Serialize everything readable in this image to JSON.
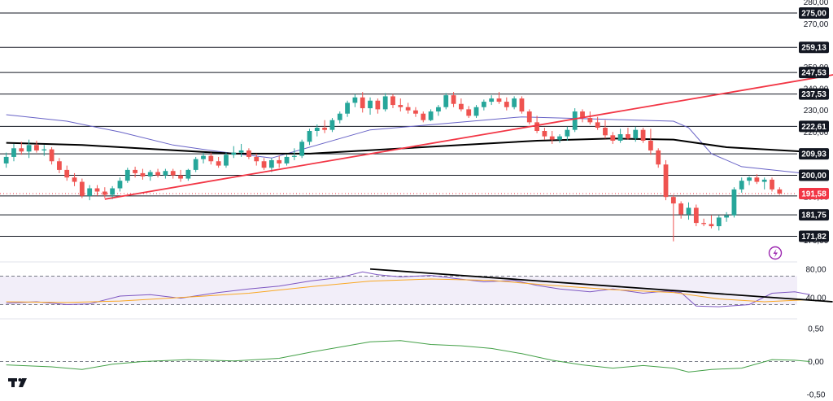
{
  "chart_data": [
    {
      "type": "candlestick",
      "title": "",
      "ylim": [
        160,
        281
      ],
      "y_ticks": [
        "280,00",
        "270,00",
        "250,00",
        "240,00",
        "230,00",
        "220,00",
        "190,00",
        "170,00"
      ],
      "grid": false,
      "up_color": "#26a69a",
      "down_color": "#ef5350",
      "candles": [
        [
          205.5,
          210.5,
          203.5,
          208.5
        ],
        [
          208.5,
          214.5,
          206.5,
          212.5
        ],
        [
          212.5,
          215.5,
          209.5,
          211.0
        ],
        [
          211.0,
          216.5,
          208.0,
          214.0
        ],
        [
          214.0,
          216.0,
          210.5,
          211.5
        ],
        [
          211.5,
          214.0,
          209.0,
          212.0
        ],
        [
          212.0,
          213.0,
          205.0,
          206.5
        ],
        [
          206.5,
          208.0,
          201.0,
          202.5
        ],
        [
          202.5,
          204.5,
          197.5,
          199.0
        ],
        [
          199.0,
          201.0,
          195.0,
          197.0
        ],
        [
          197.0,
          198.5,
          189.5,
          190.5
        ],
        [
          190.5,
          195.5,
          188.5,
          194.0
        ],
        [
          194.0,
          195.5,
          190.5,
          192.5
        ],
        [
          192.5,
          194.5,
          189.5,
          191.0
        ],
        [
          191.0,
          195.0,
          189.0,
          194.0
        ],
        [
          194.0,
          199.0,
          192.5,
          197.5
        ],
        [
          197.5,
          203.5,
          196.5,
          202.5
        ],
        [
          202.5,
          204.0,
          199.0,
          201.0
        ],
        [
          201.0,
          203.0,
          198.0,
          199.5
        ],
        [
          199.5,
          202.5,
          197.5,
          201.5
        ],
        [
          201.5,
          203.0,
          199.0,
          200.0
        ],
        [
          200.0,
          203.0,
          198.5,
          202.0
        ],
        [
          202.0,
          203.0,
          198.5,
          200.0
        ],
        [
          200.0,
          202.5,
          197.0,
          198.5
        ],
        [
          198.5,
          203.0,
          197.5,
          202.5
        ],
        [
          202.5,
          208.5,
          201.5,
          207.5
        ],
        [
          207.5,
          210.5,
          205.5,
          209.0
        ],
        [
          209.0,
          210.5,
          205.0,
          206.5
        ],
        [
          206.5,
          208.5,
          203.5,
          204.5
        ],
        [
          204.5,
          210.5,
          203.5,
          209.5
        ],
        [
          209.5,
          213.5,
          208.0,
          210.5
        ],
        [
          210.5,
          214.5,
          208.5,
          211.5
        ],
        [
          211.5,
          212.5,
          207.5,
          208.5
        ],
        [
          208.5,
          210.0,
          204.5,
          206.5
        ],
        [
          206.5,
          208.0,
          202.5,
          203.5
        ],
        [
          203.5,
          208.0,
          201.5,
          207.0
        ],
        [
          207.0,
          209.0,
          203.5,
          205.5
        ],
        [
          205.5,
          209.5,
          204.5,
          208.5
        ],
        [
          208.5,
          212.5,
          207.0,
          209.0
        ],
        [
          209.0,
          216.5,
          208.0,
          215.5
        ],
        [
          215.5,
          221.5,
          214.0,
          220.5
        ],
        [
          220.5,
          223.5,
          218.0,
          222.0
        ],
        [
          222.0,
          225.5,
          219.5,
          221.0
        ],
        [
          221.0,
          226.5,
          220.0,
          225.5
        ],
        [
          225.5,
          229.5,
          224.0,
          228.5
        ],
        [
          228.5,
          234.5,
          227.0,
          233.5
        ],
        [
          233.5,
          237.5,
          231.5,
          236.0
        ],
        [
          236.0,
          238.5,
          229.0,
          231.0
        ],
        [
          231.0,
          236.0,
          228.0,
          234.5
        ],
        [
          234.5,
          235.5,
          228.5,
          230.5
        ],
        [
          230.5,
          238.0,
          229.5,
          236.5
        ],
        [
          236.5,
          237.5,
          231.0,
          232.5
        ],
        [
          232.5,
          235.5,
          229.5,
          231.5
        ],
        [
          231.5,
          233.5,
          228.5,
          230.0
        ],
        [
          230.0,
          231.5,
          227.0,
          228.5
        ],
        [
          228.5,
          229.5,
          224.5,
          225.5
        ],
        [
          225.5,
          230.5,
          225.0,
          229.5
        ],
        [
          229.5,
          232.5,
          227.5,
          231.5
        ],
        [
          231.5,
          238.0,
          230.5,
          237.0
        ],
        [
          237.0,
          238.5,
          231.5,
          233.0
        ],
        [
          233.0,
          235.5,
          229.5,
          230.5
        ],
        [
          230.5,
          232.0,
          226.5,
          227.5
        ],
        [
          227.5,
          232.5,
          226.5,
          231.5
        ],
        [
          231.5,
          235.0,
          230.0,
          234.0
        ],
        [
          234.0,
          237.0,
          232.5,
          235.5
        ],
        [
          235.5,
          238.5,
          233.0,
          234.0
        ],
        [
          234.0,
          236.0,
          230.0,
          231.5
        ],
        [
          231.5,
          236.5,
          230.5,
          235.5
        ],
        [
          235.5,
          236.5,
          228.5,
          229.5
        ],
        [
          229.5,
          230.5,
          223.5,
          224.5
        ],
        [
          224.5,
          227.5,
          219.5,
          220.5
        ],
        [
          220.5,
          222.0,
          216.5,
          218.0
        ],
        [
          218.0,
          220.5,
          214.5,
          216.5
        ],
        [
          216.5,
          219.0,
          215.0,
          218.0
        ],
        [
          218.0,
          222.5,
          216.0,
          221.0
        ],
        [
          221.0,
          231.0,
          220.0,
          229.5
        ],
        [
          229.5,
          230.5,
          224.5,
          226.5
        ],
        [
          226.5,
          229.5,
          223.5,
          224.5
        ],
        [
          224.5,
          227.0,
          221.0,
          222.0
        ],
        [
          222.0,
          225.5,
          217.0,
          218.5
        ],
        [
          218.5,
          220.0,
          214.5,
          216.0
        ],
        [
          216.0,
          221.5,
          215.0,
          219.0
        ],
        [
          219.0,
          222.0,
          216.5,
          217.0
        ],
        [
          217.0,
          222.5,
          215.5,
          221.0
        ],
        [
          221.0,
          222.0,
          215.0,
          216.0
        ],
        [
          216.0,
          221.5,
          209.5,
          211.5
        ],
        [
          211.5,
          212.5,
          203.5,
          205.0
        ],
        [
          205.0,
          207.0,
          188.5,
          190.0
        ],
        [
          190.0,
          191.0,
          169.5,
          187.0
        ],
        [
          187.0,
          188.0,
          180.0,
          182.0
        ],
        [
          182.0,
          187.5,
          179.5,
          185.0
        ],
        [
          185.0,
          186.5,
          176.5,
          178.0
        ],
        [
          178.0,
          180.0,
          176.5,
          177.5
        ],
        [
          177.5,
          181.5,
          175.5,
          176.5
        ],
        [
          176.5,
          181.5,
          174.5,
          180.5
        ],
        [
          180.5,
          183.0,
          178.5,
          181.5
        ],
        [
          181.5,
          194.5,
          180.5,
          193.5
        ],
        [
          193.5,
          199.0,
          192.0,
          197.5
        ],
        [
          197.5,
          199.5,
          195.5,
          199.0
        ],
        [
          199.0,
          200.5,
          196.0,
          197.0
        ],
        [
          197.0,
          199.0,
          193.5,
          198.0
        ],
        [
          198.0,
          199.0,
          192.5,
          193.5
        ],
        [
          193.5,
          194.5,
          191.0,
          191.6
        ]
      ],
      "moving_averages": [
        {
          "color": "#6762c6",
          "values": [
            [
              0,
              228
            ],
            [
              8,
              225
            ],
            [
              15,
              220
            ],
            [
              22,
              214
            ],
            [
              28,
              211
            ],
            [
              35,
              208
            ],
            [
              40,
              213
            ],
            [
              48,
              221
            ],
            [
              58,
              224
            ],
            [
              68,
              227
            ],
            [
              78,
              226
            ],
            [
              88,
              225
            ],
            [
              90,
              222
            ],
            [
              93,
              210
            ],
            [
              97,
              204
            ],
            [
              105,
              201
            ]
          ]
        },
        {
          "color": "#000000",
          "values": [
            [
              0,
              215
            ],
            [
              10,
              214
            ],
            [
              20,
              212
            ],
            [
              30,
              210
            ],
            [
              40,
              210
            ],
            [
              50,
              212
            ],
            [
              60,
              214
            ],
            [
              70,
              216
            ],
            [
              80,
              217
            ],
            [
              88,
              216.5
            ],
            [
              95,
              213
            ],
            [
              105,
              211
            ]
          ]
        }
      ],
      "trendline": {
        "color": "#f23645",
        "points": [
          [
            13,
            189
          ],
          [
            110,
            247
          ]
        ]
      },
      "horizontal_levels": [
        {
          "label": "275,00",
          "value": 275.0
        },
        {
          "label": "259,13",
          "value": 259.13
        },
        {
          "label": "247,53",
          "value": 247.53
        },
        {
          "label": "237,53",
          "value": 237.53
        },
        {
          "label": "222,61",
          "value": 222.61
        },
        {
          "label": "209,93",
          "value": 209.93
        },
        {
          "label": "200,00",
          "value": 200.0
        },
        {
          "label": "181,75",
          "value": 181.75
        },
        {
          "label": "171,82",
          "value": 171.82
        }
      ],
      "last_price": {
        "label": "191,58",
        "value": 191.58,
        "color": "#f23645"
      },
      "plain_line": {
        "value": 190.5,
        "color": "#131722"
      }
    },
    {
      "type": "line",
      "name_panel": "oscillator",
      "ylim": [
        10,
        90
      ],
      "y_ticks": [
        "80,00",
        "40,00"
      ],
      "band": [
        30,
        70
      ],
      "series": [
        {
          "color": "#7e57c2",
          "values": [
            [
              0,
              32
            ],
            [
              4,
              34
            ],
            [
              8,
              30
            ],
            [
              11,
              31
            ],
            [
              15,
              42
            ],
            [
              19,
              44
            ],
            [
              23,
              39
            ],
            [
              28,
              47
            ],
            [
              32,
              52
            ],
            [
              36,
              56
            ],
            [
              40,
              63
            ],
            [
              44,
              68
            ],
            [
              47,
              76
            ],
            [
              49,
              72
            ],
            [
              52,
              69
            ],
            [
              56,
              71
            ],
            [
              59,
              67
            ],
            [
              63,
              62
            ],
            [
              67,
              64
            ],
            [
              70,
              57
            ],
            [
              73,
              52
            ],
            [
              77,
              48
            ],
            [
              80,
              52
            ],
            [
              84,
              46
            ],
            [
              87,
              49
            ],
            [
              89,
              47
            ],
            [
              91,
              28
            ],
            [
              94,
              27
            ],
            [
              98,
              30
            ],
            [
              101,
              46
            ],
            [
              104,
              48
            ],
            [
              106,
              44
            ]
          ]
        },
        {
          "color": "#f9a825",
          "values": [
            [
              0,
              34
            ],
            [
              8,
              33
            ],
            [
              15,
              35
            ],
            [
              23,
              40
            ],
            [
              32,
              46
            ],
            [
              40,
              55
            ],
            [
              48,
              63
            ],
            [
              56,
              66
            ],
            [
              64,
              64
            ],
            [
              72,
              57
            ],
            [
              80,
              51
            ],
            [
              88,
              47
            ],
            [
              94,
              38
            ],
            [
              100,
              34
            ],
            [
              106,
              37
            ]
          ]
        }
      ],
      "trendline": {
        "color": "#000000",
        "points": [
          [
            48,
            80
          ],
          [
            109,
            34
          ]
        ]
      }
    },
    {
      "type": "line",
      "name_panel": "histogram",
      "ylim": [
        -0.6,
        0.65
      ],
      "y_ticks": [
        "0,50",
        "0,00",
        "-0,50"
      ],
      "series": [
        {
          "color": "#43a047",
          "values": [
            [
              0,
              -0.05
            ],
            [
              6,
              -0.08
            ],
            [
              10,
              -0.12
            ],
            [
              14,
              -0.04
            ],
            [
              18,
              0.0
            ],
            [
              24,
              0.03
            ],
            [
              30,
              0.01
            ],
            [
              36,
              0.05
            ],
            [
              40,
              0.14
            ],
            [
              44,
              0.22
            ],
            [
              48,
              0.3
            ],
            [
              52,
              0.32
            ],
            [
              56,
              0.26
            ],
            [
              60,
              0.24
            ],
            [
              64,
              0.2
            ],
            [
              68,
              0.12
            ],
            [
              72,
              0.02
            ],
            [
              76,
              -0.05
            ],
            [
              80,
              -0.1
            ],
            [
              84,
              -0.06
            ],
            [
              88,
              -0.1
            ],
            [
              90,
              -0.16
            ],
            [
              93,
              -0.12
            ],
            [
              97,
              -0.1
            ],
            [
              101,
              0.03
            ],
            [
              104,
              0.02
            ],
            [
              106,
              0.0
            ]
          ]
        }
      ]
    }
  ]
}
